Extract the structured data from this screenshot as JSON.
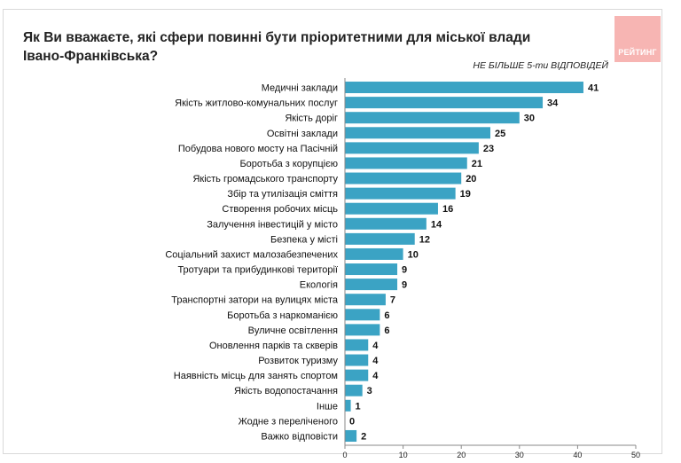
{
  "logo": {
    "text": "РЕЙТИНГ"
  },
  "chart_data": {
    "type": "bar",
    "orientation": "horizontal",
    "title": "Як Ви вважаєте, які сфери повинні бути пріоритетними для міської влади Івано-Франківська?",
    "subtitle": "НЕ БІЛЬШЕ 5-ти ВІДПОВІДЕЙ",
    "categories": [
      "Медичні заклади",
      "Якість житлово-комунальних послуг",
      "Якість доріг",
      "Освітні заклади",
      "Побудова нового мосту на Пасічній",
      "Боротьба з корупцією",
      "Якість громадського транспорту",
      "Збір та утилізація сміття",
      "Створення робочих місць",
      "Залучення інвестицій у місто",
      "Безпека у місті",
      "Соціальний захист малозабезпечених",
      "Тротуари та прибудинкові території",
      "Екологія",
      "Транспортні затори на вулицях міста",
      "Боротьба з наркоманією",
      "Вуличне освітлення",
      "Оновлення парків та скверів",
      "Розвиток туризму",
      "Наявність місць для занять спортом",
      "Якість водопостачання",
      "Інше",
      "Жодне з переліченого",
      "Важко відповісти"
    ],
    "values": [
      41,
      34,
      30,
      25,
      23,
      21,
      20,
      19,
      16,
      14,
      12,
      10,
      9,
      9,
      7,
      6,
      6,
      4,
      4,
      4,
      3,
      1,
      0,
      2
    ],
    "xlim": [
      0,
      50
    ],
    "xticks": [
      0,
      10,
      20,
      30,
      40,
      50
    ],
    "bar_color": "#3ba3c4",
    "grid": false,
    "legend": "none"
  }
}
